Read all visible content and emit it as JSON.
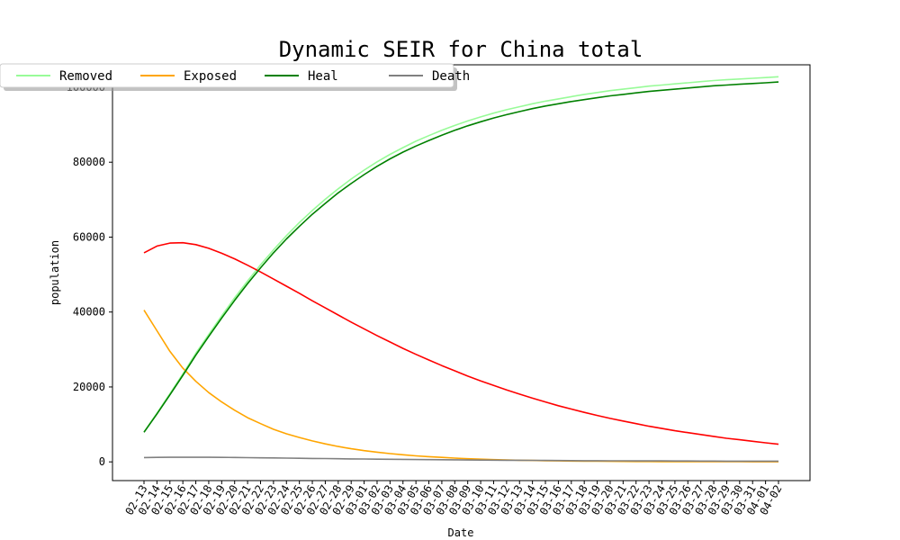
{
  "chart_data": {
    "type": "line",
    "title": "Dynamic SEIR for China total",
    "xlabel": "Date",
    "ylabel": "population",
    "grid": false,
    "legend_position": "top-left",
    "ylim": [
      -5000,
      106000
    ],
    "yticks": [
      0,
      20000,
      40000,
      60000,
      80000,
      100000
    ],
    "x": [
      "02-13",
      "02-14",
      "02-15",
      "02-16",
      "02-17",
      "02-18",
      "02-19",
      "02-20",
      "02-21",
      "02-22",
      "02-23",
      "02-24",
      "02-25",
      "02-26",
      "02-27",
      "02-28",
      "02-29",
      "03-01",
      "03-02",
      "03-03",
      "03-04",
      "03-05",
      "03-06",
      "03-07",
      "03-08",
      "03-09",
      "03-10",
      "03-11",
      "03-12",
      "03-13",
      "03-14",
      "03-15",
      "03-16",
      "03-17",
      "03-18",
      "03-19",
      "03-20",
      "03-21",
      "03-22",
      "03-23",
      "03-24",
      "03-25",
      "03-26",
      "03-27",
      "03-28",
      "03-29",
      "03-30",
      "03-31",
      "04-01",
      "04-02"
    ],
    "series": [
      {
        "name": "Removed",
        "color": "#98fb98",
        "values": [
          8000,
          13000,
          18200,
          23500,
          29000,
          34000,
          39000,
          43800,
          48300,
          52600,
          56600,
          60400,
          63900,
          67100,
          70100,
          72900,
          75500,
          77900,
          80100,
          82100,
          83900,
          85600,
          87100,
          88500,
          89800,
          91000,
          92100,
          93100,
          94000,
          94800,
          95600,
          96300,
          96900,
          97500,
          98100,
          98600,
          99100,
          99500,
          99900,
          100300,
          100600,
          100900,
          101200,
          101500,
          101800,
          102000,
          102200,
          102400,
          102600,
          102800
        ]
      },
      {
        "name": "",
        "color": "#ff0000",
        "values": [
          55800,
          57600,
          58400,
          58500,
          58000,
          57000,
          55700,
          54200,
          52500,
          50700,
          48800,
          46900,
          45000,
          43000,
          41100,
          39200,
          37300,
          35500,
          33700,
          32000,
          30300,
          28700,
          27200,
          25700,
          24300,
          22900,
          21600,
          20400,
          19200,
          18100,
          17000,
          16000,
          15000,
          14100,
          13200,
          12400,
          11600,
          10900,
          10200,
          9500,
          8900,
          8300,
          7800,
          7300,
          6800,
          6300,
          5900,
          5500,
          5100,
          4700
        ]
      },
      {
        "name": "Exposed",
        "color": "#ffa500",
        "values": [
          40500,
          35000,
          29500,
          25000,
          21500,
          18500,
          16000,
          13800,
          11800,
          10200,
          8700,
          7500,
          6500,
          5600,
          4800,
          4100,
          3500,
          3000,
          2600,
          2200,
          1900,
          1600,
          1400,
          1200,
          1000,
          850,
          720,
          610,
          520,
          440,
          370,
          310,
          260,
          220,
          190,
          160,
          140,
          120,
          100,
          90,
          80,
          70,
          60,
          50,
          45,
          40,
          35,
          30,
          25,
          20
        ]
      },
      {
        "name": "Heal",
        "color": "#008000",
        "values": [
          7900,
          12800,
          17900,
          23100,
          28500,
          33500,
          38400,
          43100,
          47600,
          51800,
          55800,
          59500,
          62900,
          66100,
          69000,
          71800,
          74300,
          76700,
          78900,
          80900,
          82700,
          84300,
          85800,
          87200,
          88500,
          89700,
          90800,
          91800,
          92700,
          93500,
          94300,
          95000,
          95600,
          96200,
          96700,
          97200,
          97700,
          98100,
          98500,
          98900,
          99200,
          99500,
          99800,
          100100,
          100400,
          100600,
          100800,
          101000,
          101200,
          101400
        ]
      },
      {
        "name": "Death",
        "color": "#808080",
        "values": [
          1150,
          1200,
          1220,
          1230,
          1230,
          1220,
          1200,
          1170,
          1130,
          1090,
          1050,
          1000,
          960,
          920,
          880,
          840,
          800,
          760,
          720,
          690,
          660,
          630,
          600,
          570,
          540,
          510,
          480,
          460,
          440,
          420,
          400,
          380,
          360,
          340,
          320,
          300,
          290,
          280,
          270,
          260,
          250,
          240,
          230,
          220,
          210,
          200,
          195,
          190,
          185,
          180
        ]
      }
    ]
  }
}
